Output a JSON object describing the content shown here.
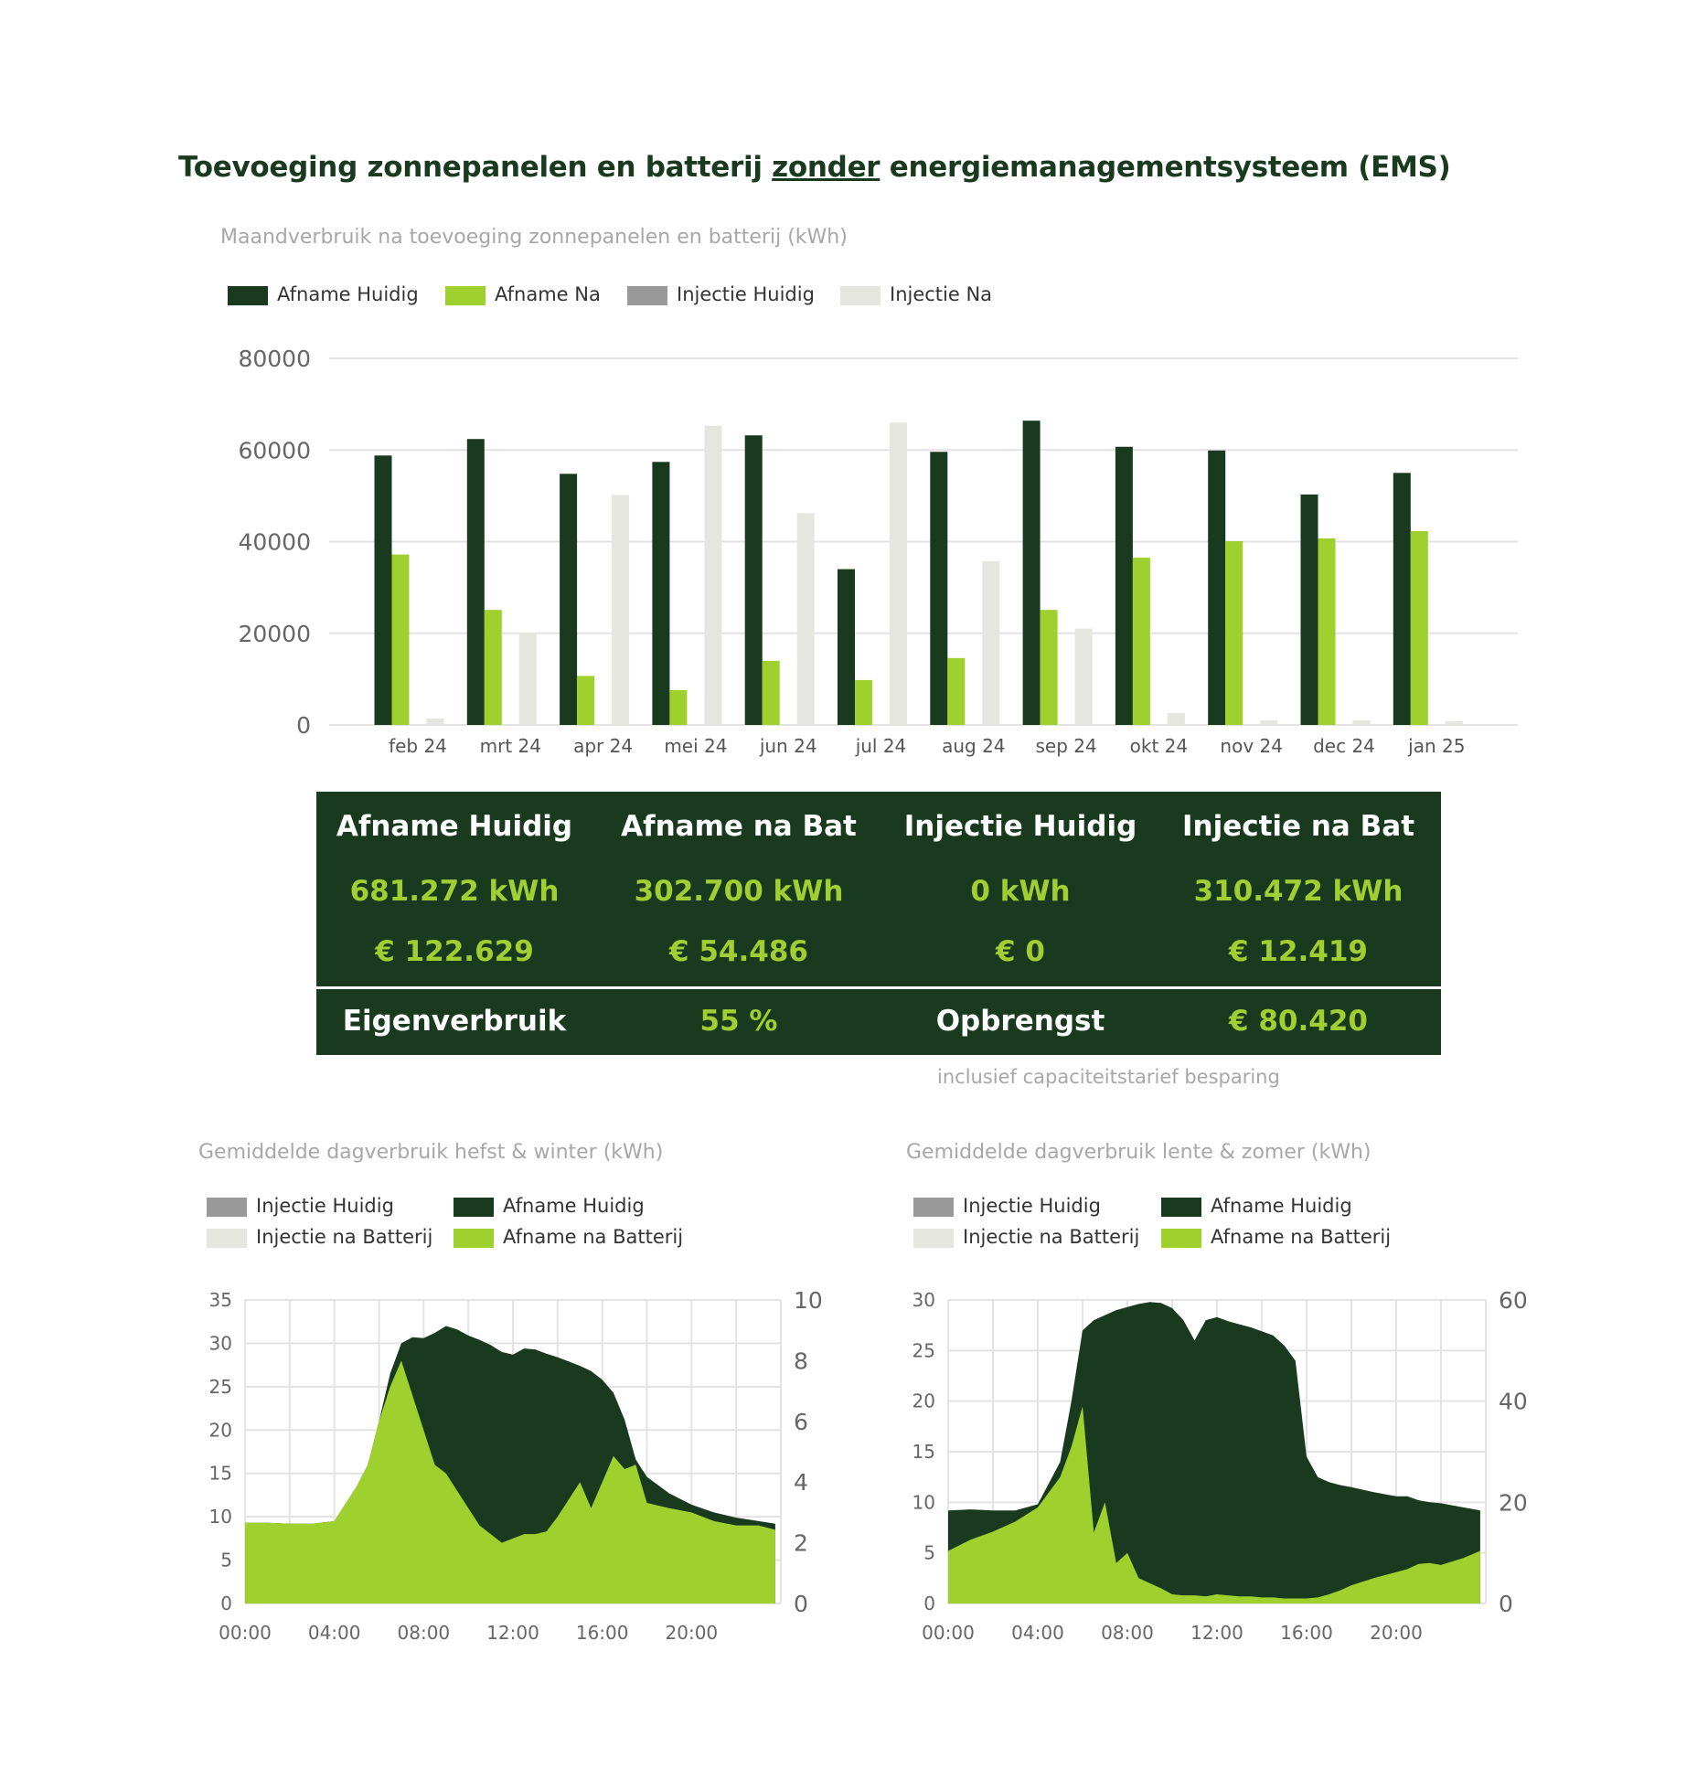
{
  "title": {
    "before": "Toevoeging zonnepanelen en batterij ",
    "underlined": "zonder",
    "after": " energiemanagementsysteem (EMS)"
  },
  "colors": {
    "afname_huidig": "#193a1f",
    "afname_na": "#9fd12e",
    "injectie_huidig": "#999999",
    "injectie_na": "#e6e6e0",
    "grid": "#e3e3e3"
  },
  "summary": {
    "headers": [
      "Afname Huidig",
      "Afname na Bat",
      "Injectie Huidig",
      "Injectie na Bat"
    ],
    "kwh": [
      "681.272 kWh",
      "302.700 kWh",
      "0 kWh",
      "310.472 kWh"
    ],
    "eur": [
      "€ 122.629",
      "€ 54.486",
      "€ 0",
      "€ 12.419"
    ],
    "eigenverbruik_label": "Eigenverbruik",
    "eigenverbruik_value": "55 %",
    "opbrengst_label": "Opbrengst",
    "opbrengst_value": "€ 80.420",
    "footnote": "inclusief capaciteitstarief besparing"
  },
  "chart_data": [
    {
      "type": "bar",
      "title": "Maandverbruik na toevoeging zonnepanelen en batterij (kWh)",
      "legend": [
        "Afname Huidig",
        "Afname Na",
        "Injectie Huidig",
        "Injectie Na"
      ],
      "legend_position": "top-left",
      "categories": [
        "feb 24",
        "mrt 24",
        "apr 24",
        "mei 24",
        "jun 24",
        "jul 24",
        "aug 24",
        "sep 24",
        "okt 24",
        "nov 24",
        "dec 24",
        "jan 25"
      ],
      "series": [
        {
          "name": "Afname Huidig",
          "values": [
            58800,
            62400,
            54800,
            57400,
            63200,
            34000,
            59600,
            66400,
            60700,
            59900,
            50300,
            55000
          ]
        },
        {
          "name": "Afname Na",
          "values": [
            37200,
            25100,
            10700,
            7600,
            14000,
            9800,
            14600,
            25100,
            36500,
            40100,
            40700,
            42300
          ]
        },
        {
          "name": "Injectie Huidig",
          "values": [
            0,
            0,
            0,
            0,
            0,
            0,
            0,
            0,
            0,
            0,
            0,
            0
          ]
        },
        {
          "name": "Injectie Na",
          "values": [
            1400,
            20000,
            50200,
            65300,
            46200,
            66000,
            35700,
            21000,
            2600,
            1000,
            1000,
            800
          ]
        }
      ],
      "yticks": [
        "0",
        "20000",
        "40000",
        "60000",
        "80000"
      ],
      "ylim": [
        0,
        80000
      ],
      "grid": true
    },
    {
      "type": "area",
      "title": "Gemiddelde dagverbruik hefst & winter (kWh)",
      "legend": [
        "Injectie Huidig",
        "Afname Huidig",
        "Injectie na Batterij",
        "Afname na Batterij"
      ],
      "legend_position": "top-left",
      "x_ticks": [
        "00:00",
        "04:00",
        "08:00",
        "12:00",
        "16:00",
        "20:00"
      ],
      "x_hours": [
        0,
        1,
        2,
        3,
        4,
        5,
        5.5,
        6,
        6.5,
        7,
        7.5,
        8,
        8.5,
        9,
        9.5,
        10,
        10.5,
        11,
        11.5,
        12,
        12.5,
        13,
        13.5,
        14,
        14.5,
        15,
        15.5,
        16,
        16.5,
        17,
        17.5,
        18,
        19,
        20,
        21,
        22,
        23,
        23.75
      ],
      "series": [
        {
          "name": "Afname Huidig",
          "values": [
            9.3,
            9.3,
            9.2,
            9.2,
            9.5,
            13.5,
            16,
            21,
            26.5,
            30,
            30.7,
            30.6,
            31.2,
            32,
            31.6,
            30.9,
            30.4,
            29.8,
            29,
            28.7,
            29.4,
            29.3,
            28.8,
            28.4,
            27.9,
            27.4,
            26.8,
            25.8,
            24.3,
            21.2,
            16.6,
            14.6,
            12.7,
            11.4,
            10.5,
            9.9,
            9.5,
            9.2
          ]
        },
        {
          "name": "Afname na Batterij",
          "values": [
            9.3,
            9.3,
            9.2,
            9.2,
            9.5,
            13.5,
            16,
            21,
            25,
            28,
            24,
            20,
            16,
            15,
            13,
            11,
            9,
            8,
            7,
            7.5,
            8,
            8,
            8.3,
            10,
            12,
            14,
            11,
            14,
            17,
            15.5,
            16,
            11.6,
            11,
            10.5,
            9.5,
            9,
            9,
            8.5
          ]
        },
        {
          "name": "Injectie Huidig",
          "values": [
            0,
            0,
            0,
            0,
            0,
            0,
            0,
            0,
            0,
            0,
            0,
            0,
            0,
            0,
            0,
            0,
            0,
            0,
            0,
            0,
            0,
            0,
            0,
            0,
            0,
            0,
            0,
            0,
            0,
            0,
            0,
            0,
            0,
            0,
            0,
            0,
            0,
            0
          ]
        }
      ],
      "y_left_ticks": [
        "0",
        "5",
        "10",
        "15",
        "20",
        "25",
        "30",
        "35"
      ],
      "y_left_lim": [
        0,
        35
      ],
      "y_right_ticks": [
        "0",
        "2",
        "4",
        "6",
        "8",
        "10"
      ],
      "y_right_lim": [
        0,
        10
      ],
      "grid": true
    },
    {
      "type": "area",
      "title": "Gemiddelde dagverbruik lente & zomer (kWh)",
      "legend": [
        "Injectie Huidig",
        "Afname Huidig",
        "Injectie na Batterij",
        "Afname na Batterij"
      ],
      "legend_position": "top-left",
      "x_ticks": [
        "00:00",
        "04:00",
        "08:00",
        "12:00",
        "16:00",
        "20:00"
      ],
      "x_hours": [
        0,
        1,
        2,
        3,
        4,
        5,
        5.5,
        6,
        6.5,
        7,
        7.5,
        8,
        8.5,
        9,
        9.5,
        10,
        10.5,
        11,
        11.5,
        12,
        12.5,
        13,
        13.5,
        14,
        14.5,
        15,
        15.5,
        16,
        16.5,
        17,
        17.5,
        18,
        19,
        20,
        20.5,
        21,
        21.5,
        22,
        23,
        23.75
      ],
      "series": [
        {
          "name": "Afname Huidig",
          "values": [
            9.2,
            9.3,
            9.2,
            9.2,
            9.8,
            14,
            20,
            27,
            28,
            28.5,
            29,
            29.3,
            29.6,
            29.8,
            29.7,
            29.2,
            28,
            26,
            28,
            28.3,
            27.9,
            27.6,
            27.3,
            26.9,
            26.5,
            25.5,
            24,
            14.5,
            12.5,
            12,
            11.7,
            11.5,
            11,
            10.6,
            10.6,
            10.2,
            10,
            9.9,
            9.5,
            9.2
          ]
        },
        {
          "name": "Afname na Batterij",
          "values": [
            5.2,
            6.3,
            7.1,
            8.1,
            9.5,
            12.5,
            15.5,
            19.5,
            7,
            10,
            4,
            5,
            2.5,
            2,
            1.5,
            0.9,
            0.8,
            0.8,
            0.7,
            0.9,
            0.8,
            0.7,
            0.7,
            0.6,
            0.6,
            0.5,
            0.5,
            0.5,
            0.6,
            0.9,
            1.3,
            1.8,
            2.5,
            3.1,
            3.4,
            3.9,
            4,
            3.8,
            4.5,
            5.2
          ]
        },
        {
          "name": "Injectie Huidig",
          "values": [
            0,
            0,
            0,
            0,
            0,
            0,
            0,
            0,
            0,
            0,
            0,
            0,
            0,
            0,
            0,
            0,
            0,
            0,
            0,
            0,
            0,
            0,
            0,
            0,
            0,
            0,
            0,
            0,
            0,
            0,
            0,
            0,
            0,
            0,
            0,
            0,
            0,
            0,
            0,
            0
          ]
        }
      ],
      "y_left_ticks": [
        "0",
        "5",
        "10",
        "15",
        "20",
        "25",
        "30"
      ],
      "y_left_lim": [
        0,
        30
      ],
      "y_right_ticks": [
        "0",
        "20",
        "40",
        "60"
      ],
      "y_right_lim": [
        0,
        60
      ],
      "grid": true
    }
  ]
}
